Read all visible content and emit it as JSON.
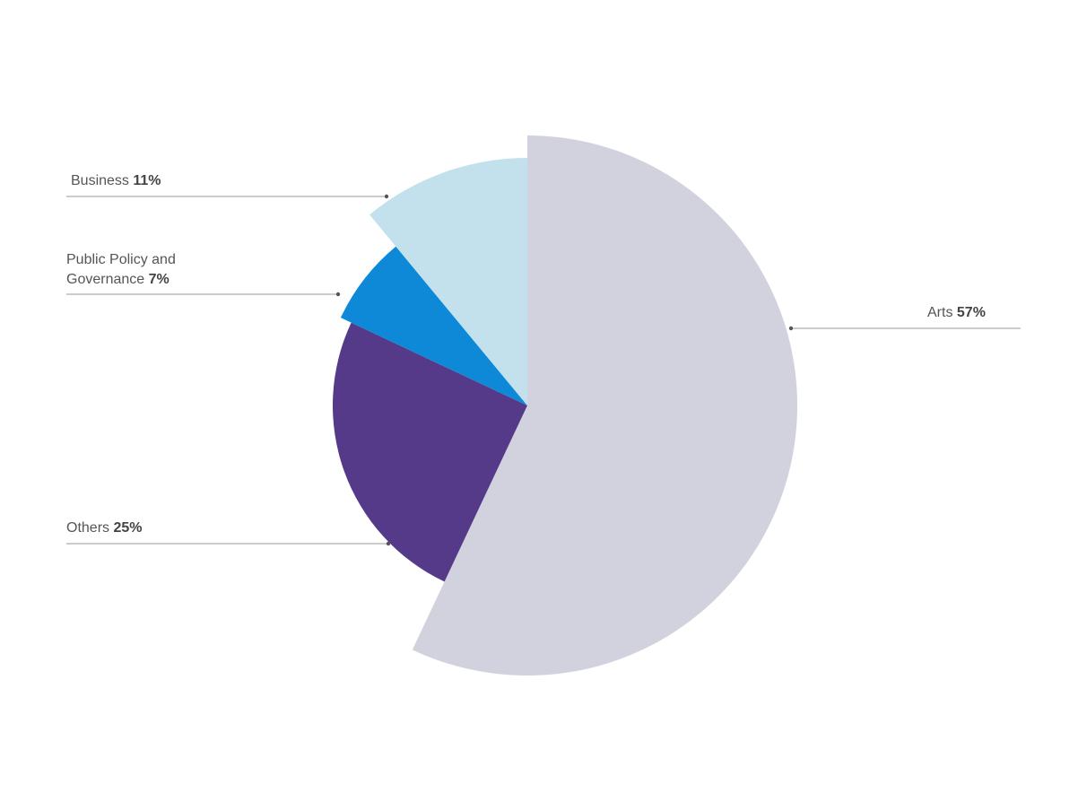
{
  "chart_data": {
    "type": "pie",
    "title": "",
    "unit": "%",
    "slices": [
      {
        "name": "Arts",
        "value": 57,
        "value_label": "57%",
        "color": "#d2d2de"
      },
      {
        "name": "Others",
        "value": 25,
        "value_label": "25%",
        "color": "#563a8a"
      },
      {
        "name": "Public Policy and Governance",
        "value": 7,
        "value_label": "7%",
        "color": "#0e89d8"
      },
      {
        "name": "Business",
        "value": 11,
        "value_label": "11%",
        "color": "#c2e1ed"
      }
    ],
    "labels": {
      "arts": {
        "name": "Arts",
        "pct": "57%"
      },
      "others": {
        "name": "Others",
        "pct": "25%"
      },
      "policy": {
        "name_line1": "Public Policy and",
        "name_line2": "Governance",
        "pct": "7%"
      },
      "business": {
        "name": "Business",
        "pct": "11%"
      }
    },
    "legend": "none (callout labels with leader lines)"
  }
}
